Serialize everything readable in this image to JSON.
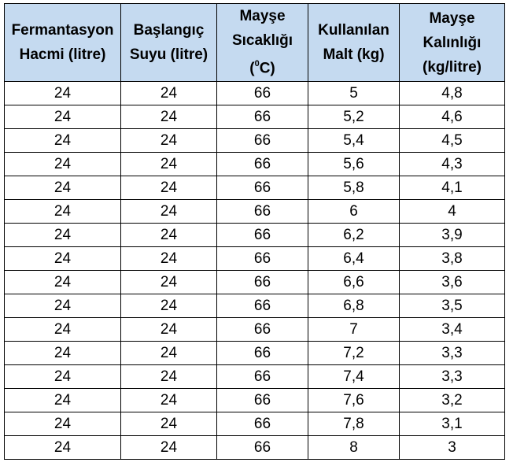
{
  "table": {
    "headers": [
      {
        "lines": [
          "Fermantasyon",
          "Hacmi (litre)"
        ]
      },
      {
        "lines": [
          "Başlangıç",
          "Suyu (litre)"
        ]
      },
      {
        "lines": [
          "Mayşe",
          "Sıcaklığı"
        ],
        "unit_prefix": "(",
        "unit_sup": "0",
        "unit_suffix": "C)"
      },
      {
        "lines": [
          "Kullanılan",
          "Malt (kg)"
        ]
      },
      {
        "lines": [
          "Mayşe",
          "Kalınlığı",
          "(kg/litre)"
        ]
      }
    ],
    "rows": [
      [
        "24",
        "24",
        "66",
        "5",
        "4,8"
      ],
      [
        "24",
        "24",
        "66",
        "5,2",
        "4,6"
      ],
      [
        "24",
        "24",
        "66",
        "5,4",
        "4,5"
      ],
      [
        "24",
        "24",
        "66",
        "5,6",
        "4,3"
      ],
      [
        "24",
        "24",
        "66",
        "5,8",
        "4,1"
      ],
      [
        "24",
        "24",
        "66",
        "6",
        "4"
      ],
      [
        "24",
        "24",
        "66",
        "6,2",
        "3,9"
      ],
      [
        "24",
        "24",
        "66",
        "6,4",
        "3,8"
      ],
      [
        "24",
        "24",
        "66",
        "6,6",
        "3,6"
      ],
      [
        "24",
        "24",
        "66",
        "6,8",
        "3,5"
      ],
      [
        "24",
        "24",
        "66",
        "7",
        "3,4"
      ],
      [
        "24",
        "24",
        "66",
        "7,2",
        "3,3"
      ],
      [
        "24",
        "24",
        "66",
        "7,4",
        "3,3"
      ],
      [
        "24",
        "24",
        "66",
        "7,6",
        "3,2"
      ],
      [
        "24",
        "24",
        "66",
        "7,8",
        "3,1"
      ],
      [
        "24",
        "24",
        "66",
        "8",
        "3"
      ]
    ]
  },
  "colors": {
    "header_background": "#c5daf0",
    "border": "#000000"
  }
}
